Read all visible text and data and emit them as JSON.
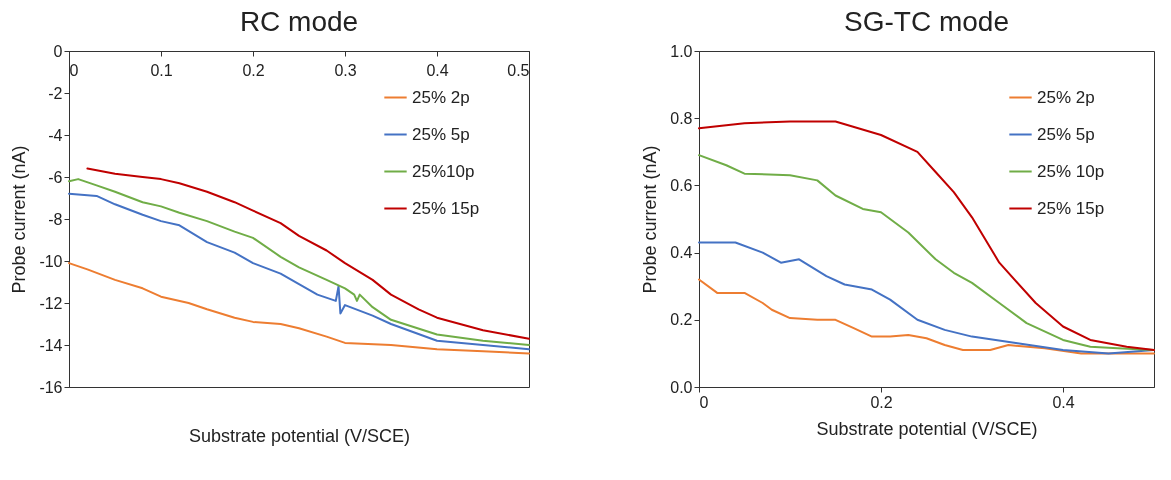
{
  "chart_data": [
    {
      "type": "line",
      "title": "RC mode",
      "xlabel": "Substrate potential (V/SCE)",
      "ylabel": "Probe current (nA)",
      "xlim": [
        0,
        0.5
      ],
      "xticks": [
        0,
        0.1,
        0.2,
        0.3,
        0.4,
        0.5
      ],
      "ylim": [
        -16,
        0
      ],
      "yticks": [
        -16,
        -14,
        -12,
        -10,
        -8,
        -6,
        -4,
        -2,
        0
      ],
      "legend": "top right",
      "grid": false,
      "series": [
        {
          "name": "25% 2p",
          "color": "#ed7d31",
          "x": [
            0,
            0.02,
            0.05,
            0.08,
            0.1,
            0.13,
            0.15,
            0.18,
            0.2,
            0.23,
            0.25,
            0.28,
            0.3,
            0.35,
            0.4,
            0.45,
            0.5
          ],
          "values": [
            -10.1,
            -10.4,
            -10.9,
            -11.3,
            -11.7,
            -12.0,
            -12.3,
            -12.7,
            -12.9,
            -13.0,
            -13.2,
            -13.6,
            -13.9,
            -14.0,
            -14.2,
            -14.3,
            -14.4
          ]
        },
        {
          "name": "25% 5p",
          "color": "#4472c4",
          "x": [
            0,
            0.03,
            0.05,
            0.08,
            0.1,
            0.12,
            0.15,
            0.18,
            0.2,
            0.23,
            0.25,
            0.27,
            0.29,
            0.293,
            0.295,
            0.3,
            0.33,
            0.35,
            0.4,
            0.45,
            0.5
          ],
          "values": [
            -6.8,
            -6.9,
            -7.3,
            -7.8,
            -8.1,
            -8.3,
            -9.1,
            -9.6,
            -10.1,
            -10.6,
            -11.1,
            -11.6,
            -11.9,
            -11.2,
            -12.5,
            -12.1,
            -12.6,
            -13.0,
            -13.8,
            -14.0,
            -14.2
          ]
        },
        {
          "name": "25%10p",
          "color": "#70ad47",
          "x": [
            0,
            0.01,
            0.03,
            0.05,
            0.08,
            0.1,
            0.12,
            0.15,
            0.18,
            0.2,
            0.23,
            0.25,
            0.28,
            0.3,
            0.31,
            0.313,
            0.316,
            0.33,
            0.35,
            0.4,
            0.45,
            0.5
          ],
          "values": [
            -6.2,
            -6.1,
            -6.4,
            -6.7,
            -7.2,
            -7.4,
            -7.7,
            -8.1,
            -8.6,
            -8.9,
            -9.8,
            -10.3,
            -10.9,
            -11.3,
            -11.6,
            -11.9,
            -11.6,
            -12.2,
            -12.8,
            -13.5,
            -13.8,
            -14.0
          ]
        },
        {
          "name": "25% 15p",
          "color": "#c00000",
          "x": [
            0.02,
            0.05,
            0.08,
            0.1,
            0.12,
            0.15,
            0.18,
            0.2,
            0.23,
            0.25,
            0.28,
            0.3,
            0.33,
            0.35,
            0.38,
            0.4,
            0.45,
            0.5
          ],
          "values": [
            -5.6,
            -5.85,
            -6.0,
            -6.1,
            -6.3,
            -6.7,
            -7.2,
            -7.6,
            -8.2,
            -8.8,
            -9.5,
            -10.1,
            -10.9,
            -11.6,
            -12.3,
            -12.7,
            -13.3,
            -13.7
          ]
        }
      ]
    },
    {
      "type": "line",
      "title": "SG-TC mode",
      "xlabel": "Substrate potential (V/SCE)",
      "ylabel": "Probe current (nA)",
      "xlim": [
        0,
        0.5
      ],
      "xticks": [
        0,
        0.2,
        0.4
      ],
      "ylim": [
        0,
        1.0
      ],
      "yticks": [
        {
          "value": 0,
          "label": "0.0"
        },
        0.2,
        0.4,
        0.6,
        0.8,
        {
          "value": 1,
          "label": "1.0"
        }
      ],
      "legend": "top right",
      "grid": false,
      "series": [
        {
          "name": "25% 2p",
          "color": "#ed7d31",
          "x": [
            0,
            0.02,
            0.05,
            0.07,
            0.08,
            0.1,
            0.13,
            0.15,
            0.17,
            0.19,
            0.21,
            0.23,
            0.25,
            0.27,
            0.29,
            0.32,
            0.34,
            0.38,
            0.42,
            0.46,
            0.5
          ],
          "values": [
            0.32,
            0.28,
            0.28,
            0.25,
            0.23,
            0.205,
            0.2,
            0.2,
            0.175,
            0.15,
            0.15,
            0.155,
            0.145,
            0.125,
            0.11,
            0.11,
            0.125,
            0.115,
            0.1,
            0.1,
            0.1
          ]
        },
        {
          "name": "25% 5p",
          "color": "#4472c4",
          "x": [
            0,
            0.04,
            0.07,
            0.09,
            0.11,
            0.14,
            0.16,
            0.19,
            0.21,
            0.24,
            0.27,
            0.3,
            0.35,
            0.4,
            0.45,
            0.5
          ],
          "values": [
            0.43,
            0.43,
            0.4,
            0.37,
            0.38,
            0.33,
            0.305,
            0.29,
            0.26,
            0.2,
            0.17,
            0.15,
            0.13,
            0.11,
            0.1,
            0.11
          ]
        },
        {
          "name": "25% 10p",
          "color": "#70ad47",
          "x": [
            0,
            0.03,
            0.05,
            0.1,
            0.13,
            0.15,
            0.18,
            0.2,
            0.23,
            0.26,
            0.28,
            0.3,
            0.33,
            0.36,
            0.4,
            0.43,
            0.46,
            0.5
          ],
          "values": [
            0.69,
            0.66,
            0.635,
            0.63,
            0.615,
            0.57,
            0.53,
            0.52,
            0.46,
            0.38,
            0.34,
            0.31,
            0.25,
            0.19,
            0.14,
            0.12,
            0.115,
            0.11
          ]
        },
        {
          "name": "25% 15p",
          "color": "#c00000",
          "x": [
            0,
            0.05,
            0.1,
            0.15,
            0.2,
            0.24,
            0.26,
            0.28,
            0.3,
            0.33,
            0.37,
            0.4,
            0.43,
            0.47,
            0.5
          ],
          "values": [
            0.77,
            0.785,
            0.79,
            0.79,
            0.75,
            0.7,
            0.64,
            0.58,
            0.505,
            0.37,
            0.25,
            0.18,
            0.14,
            0.12,
            0.11
          ]
        }
      ]
    }
  ]
}
